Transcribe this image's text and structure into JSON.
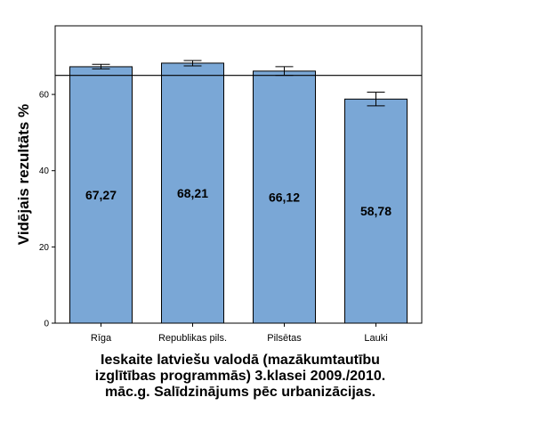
{
  "chart_data": {
    "type": "bar",
    "categories": [
      "Rīga",
      "Republikas pils.",
      "Pilsētas",
      "Lauki"
    ],
    "values": [
      67.27,
      68.21,
      66.12,
      58.78
    ],
    "value_labels": [
      "67,27",
      "68,21",
      "66,12",
      "58,78"
    ],
    "error_bars": [
      {
        "low": 66.7,
        "high": 67.9
      },
      {
        "low": 67.5,
        "high": 68.9
      },
      {
        "low": 65.0,
        "high": 67.3
      },
      {
        "low": 57.0,
        "high": 60.6
      }
    ],
    "reference_line": 65,
    "ylabel": "Vidējais rezultāts %",
    "xlabel_lines": [
      "Ieskaite latviešu valodā (mazākumtautību",
      "izglītības programmās) 3.klasei 2009./2010.",
      "māc.g. Salīdzinājums pēc urbanizācijas."
    ],
    "y_ticks": [
      0,
      20,
      40,
      60
    ],
    "ylim": [
      0,
      78
    ],
    "grid": false,
    "bar_color": "#7aa7d6"
  }
}
